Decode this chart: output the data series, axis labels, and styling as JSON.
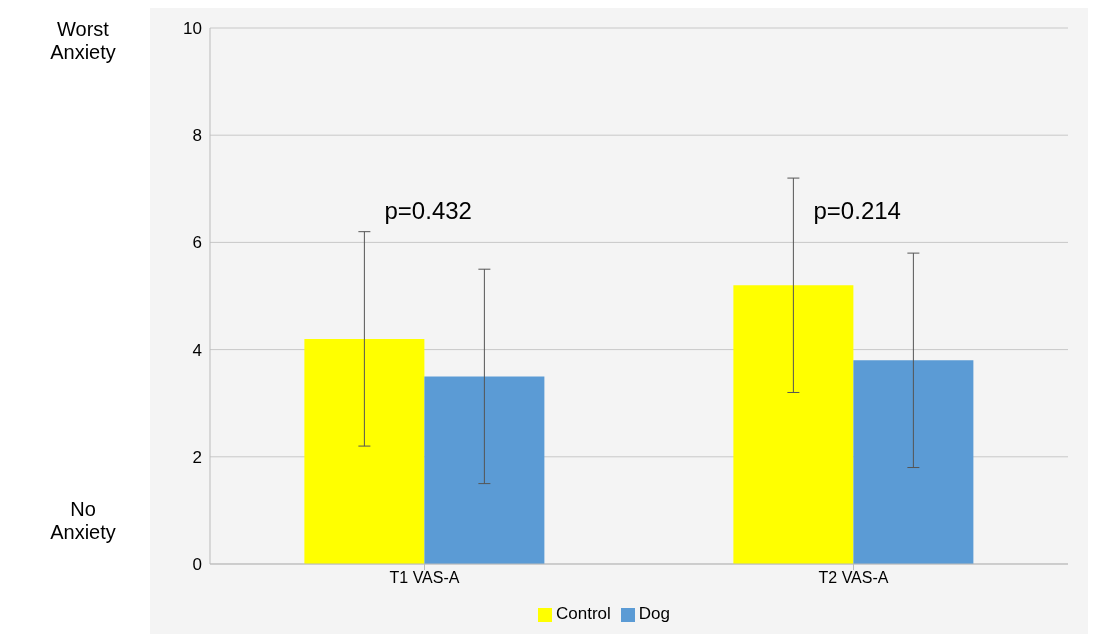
{
  "chart_data": {
    "type": "bar",
    "categories": [
      "T1 VAS-A",
      "T2 VAS-A"
    ],
    "series": [
      {
        "name": "Control",
        "color": "#ffff00",
        "values": [
          4.2,
          5.2
        ],
        "errors": [
          2,
          2
        ]
      },
      {
        "name": "Dog",
        "color": "#5b9bd5",
        "values": [
          3.5,
          3.8
        ],
        "errors": [
          2,
          2
        ]
      }
    ],
    "ylim": [
      0,
      10
    ],
    "yticks": [
      0,
      2,
      4,
      6,
      8,
      10
    ],
    "grid": "y",
    "legend": "bottom",
    "annotations": [
      "Worst Anxiety",
      "No Anxiety",
      "p=0.432",
      "p=0.214"
    ]
  }
}
